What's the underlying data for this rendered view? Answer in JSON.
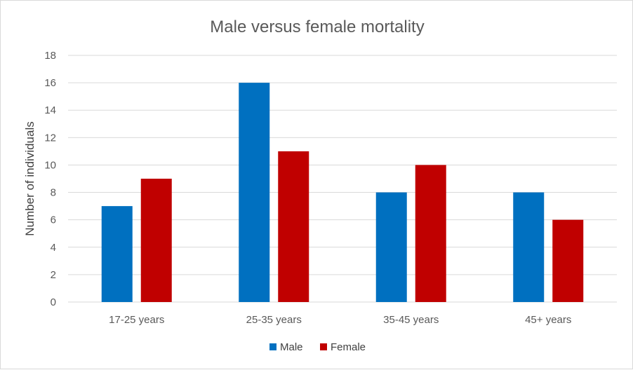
{
  "chart_data": {
    "type": "bar",
    "title": "Male versus female mortality",
    "xlabel": "",
    "ylabel": "Number of individuals",
    "categories": [
      "17-25 years",
      "25-35 years",
      "35-45 years",
      "45+ years"
    ],
    "series": [
      {
        "name": "Male",
        "values": [
          7,
          16,
          8,
          8
        ],
        "color": "#0070C0"
      },
      {
        "name": "Female",
        "values": [
          9,
          11,
          10,
          6
        ],
        "color": "#C00000"
      }
    ],
    "ylim": [
      0,
      18
    ],
    "yticks": [
      "0",
      "2",
      "4",
      "6",
      "8",
      "10",
      "12",
      "14",
      "16",
      "18"
    ],
    "grid": true,
    "legend_position": "bottom"
  }
}
